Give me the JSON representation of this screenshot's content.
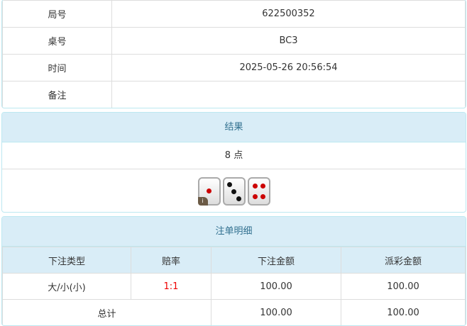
{
  "info": {
    "rows": [
      {
        "label": "局号",
        "value": "622500352"
      },
      {
        "label": "桌号",
        "value": "BC3"
      },
      {
        "label": "时间",
        "value": "2025-05-26 20:56:54"
      },
      {
        "label": "备注",
        "value": ""
      }
    ]
  },
  "result": {
    "title": "结果",
    "points": "8 点",
    "dice": [
      1,
      3,
      4
    ],
    "info_badge": "i"
  },
  "bets": {
    "title": "注单明细",
    "columns": [
      "下注类型",
      "赔率",
      "下注金额",
      "派彩金额"
    ],
    "rows": [
      {
        "type": "大/小(小)",
        "odds": "1:1",
        "amount": "100.00",
        "payout": "100.00"
      }
    ],
    "total": {
      "label": "总计",
      "amount": "100.00",
      "payout": "100.00"
    },
    "odds_color": "#ee0000"
  }
}
